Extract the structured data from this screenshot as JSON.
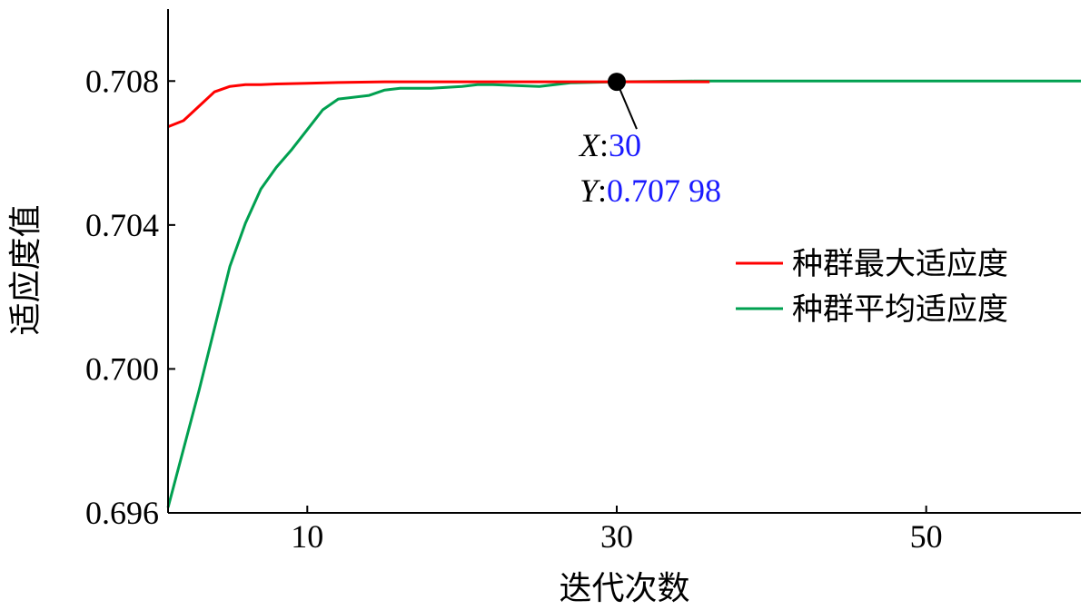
{
  "chart_data": {
    "type": "line",
    "xlabel": "迭代次数",
    "ylabel": "适应度值",
    "xlim": [
      1,
      60
    ],
    "ylim": [
      0.696,
      0.71
    ],
    "xticks": [
      "10",
      "30",
      "50"
    ],
    "yticks": [
      "0.696",
      "0.700",
      "0.704",
      "0.708"
    ],
    "legend_position": "right",
    "series": [
      {
        "name": "种群最大适应度",
        "color": "#ff0000",
        "x": [
          1,
          2,
          3,
          4,
          5,
          6,
          7,
          8,
          10,
          12,
          15,
          20,
          25,
          30,
          36
        ],
        "y": [
          0.70673,
          0.7069,
          0.7073,
          0.7077,
          0.70785,
          0.7079,
          0.7079,
          0.70792,
          0.70794,
          0.70796,
          0.70798,
          0.70798,
          0.70798,
          0.70798,
          0.70798
        ]
      },
      {
        "name": "种群平均适应度",
        "color": "#00a050",
        "x": [
          1,
          3,
          5,
          6,
          7,
          8,
          9,
          10,
          11,
          12,
          14,
          15,
          16,
          18,
          20,
          21,
          22,
          25,
          26,
          27,
          30,
          35,
          45,
          60
        ],
        "y": [
          0.69615,
          0.6994,
          0.70285,
          0.70405,
          0.705,
          0.7056,
          0.7061,
          0.70665,
          0.7072,
          0.7075,
          0.7076,
          0.70775,
          0.7078,
          0.7078,
          0.70785,
          0.7079,
          0.7079,
          0.70785,
          0.7079,
          0.70795,
          0.70798,
          0.708,
          0.708,
          0.708
        ]
      }
    ],
    "annotation": {
      "x_key": "X",
      "x_value": "30",
      "y_key": "Y",
      "y_value": "0.707 98",
      "point_x": 30,
      "point_y": 0.70798
    }
  }
}
